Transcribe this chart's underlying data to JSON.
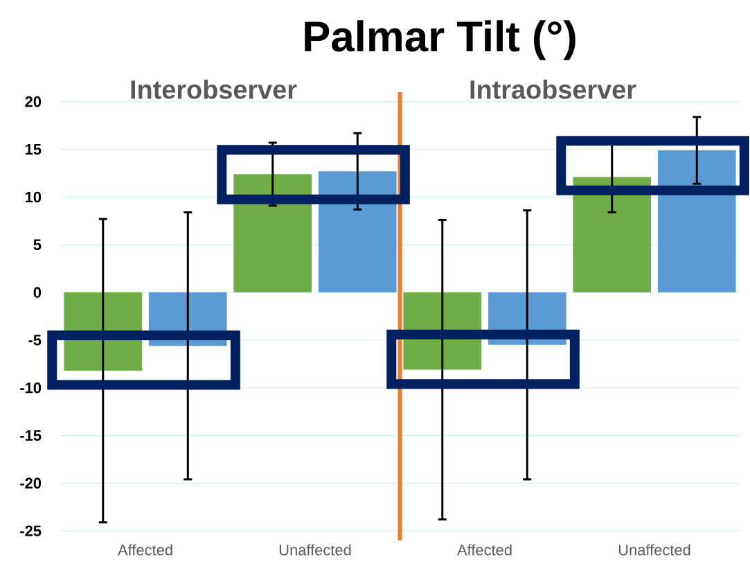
{
  "chart_data": {
    "type": "bar",
    "title": "Palmar Tilt (°)",
    "categories": [
      "Affected",
      "Unaffected",
      "Affected",
      "Unaffected"
    ],
    "series": [
      {
        "color": "#70ad47",
        "values": [
          -8.2,
          12.4,
          -8.1,
          12.1
        ],
        "errors": [
          15.9,
          3.3,
          15.7,
          3.7
        ]
      },
      {
        "color": "#5b9bd5",
        "values": [
          -5.6,
          12.7,
          -5.5,
          14.9
        ],
        "errors": [
          14,
          4,
          14.1,
          3.5
        ]
      }
    ],
    "ylim": [
      -26,
      21
    ],
    "yticks": [
      -25,
      -20,
      -15,
      -10,
      -5,
      0,
      5,
      10,
      15,
      20
    ],
    "grid": "y",
    "annotations": [
      "Interobserver",
      "Intraobserver"
    ]
  }
}
